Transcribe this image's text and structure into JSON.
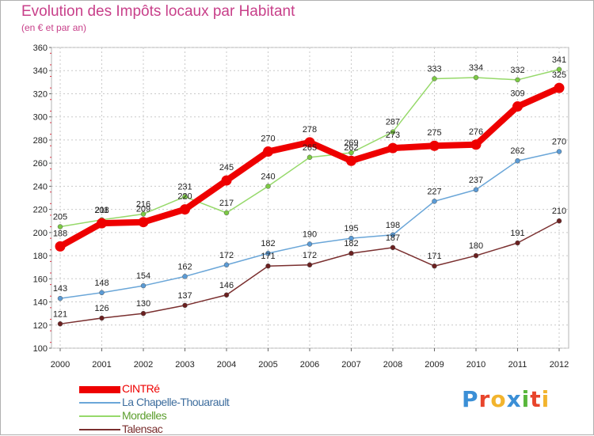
{
  "title": "Evolution des Impôts locaux par Habitant",
  "subtitle": "(en € et par an)",
  "logo": {
    "text": "Proxiti",
    "colors": [
      "#3b8fd6",
      "#e8452c",
      "#f2b42d",
      "#3b8fd6",
      "#58b63b",
      "#e8452c",
      "#f2b42d"
    ]
  },
  "chart_data": {
    "type": "line",
    "title": "Evolution des Impôts locaux par Habitant",
    "subtitle": "(en € et par an)",
    "xlabel": "",
    "ylabel": "",
    "x": [
      "2000",
      "2001",
      "2002",
      "2003",
      "2004",
      "2005",
      "2006",
      "2007",
      "2008",
      "2009",
      "2010",
      "2011",
      "2012"
    ],
    "ylim": [
      100,
      360
    ],
    "yticks": [
      "100",
      "120",
      "140",
      "160",
      "180",
      "200",
      "220",
      "240",
      "260",
      "280",
      "300",
      "320",
      "340",
      "360"
    ],
    "grid": true,
    "legend_position": "bottom-left",
    "series": [
      {
        "name": "CINTRé",
        "color": "#ee0000",
        "marker_fill": "#ee0000",
        "values": [
          188,
          208,
          209,
          220,
          245,
          270,
          278,
          262,
          273,
          275,
          276,
          309,
          325
        ]
      },
      {
        "name": "La Chapelle-Thouarault",
        "color": "#6aa6d8",
        "marker_fill": "#5b9bd5",
        "values": [
          143,
          148,
          154,
          162,
          172,
          182,
          190,
          195,
          198,
          227,
          237,
          262,
          270
        ]
      },
      {
        "name": "Mordelles",
        "color": "#96d96a",
        "marker_fill": "#7cc944",
        "values": [
          205,
          211,
          216,
          231,
          217,
          240,
          265,
          269,
          287,
          333,
          334,
          332,
          341
        ]
      },
      {
        "name": "Talensac",
        "color": "#7a2f2f",
        "marker_fill": "#6b2020",
        "values": [
          121,
          126,
          130,
          137,
          146,
          171,
          172,
          182,
          187,
          171,
          180,
          191,
          210
        ]
      }
    ],
    "value_labels": [
      [
        "188",
        "208",
        "209",
        "220",
        "245",
        "270",
        "278",
        "262",
        "273",
        "275",
        "276",
        "309",
        "325"
      ],
      [
        "143",
        "148",
        "154",
        "162",
        "172",
        "182",
        "190",
        "195",
        "198",
        "227",
        "237",
        "262",
        "270"
      ],
      [
        "205",
        "211",
        "216",
        "231",
        "217",
        "240",
        "265",
        "269",
        "287",
        "333",
        "334",
        "332",
        "341"
      ],
      [
        "121",
        "126",
        "130",
        "137",
        "146",
        "171",
        "172",
        "182",
        "187",
        "171",
        "180",
        "191",
        "210"
      ]
    ]
  }
}
